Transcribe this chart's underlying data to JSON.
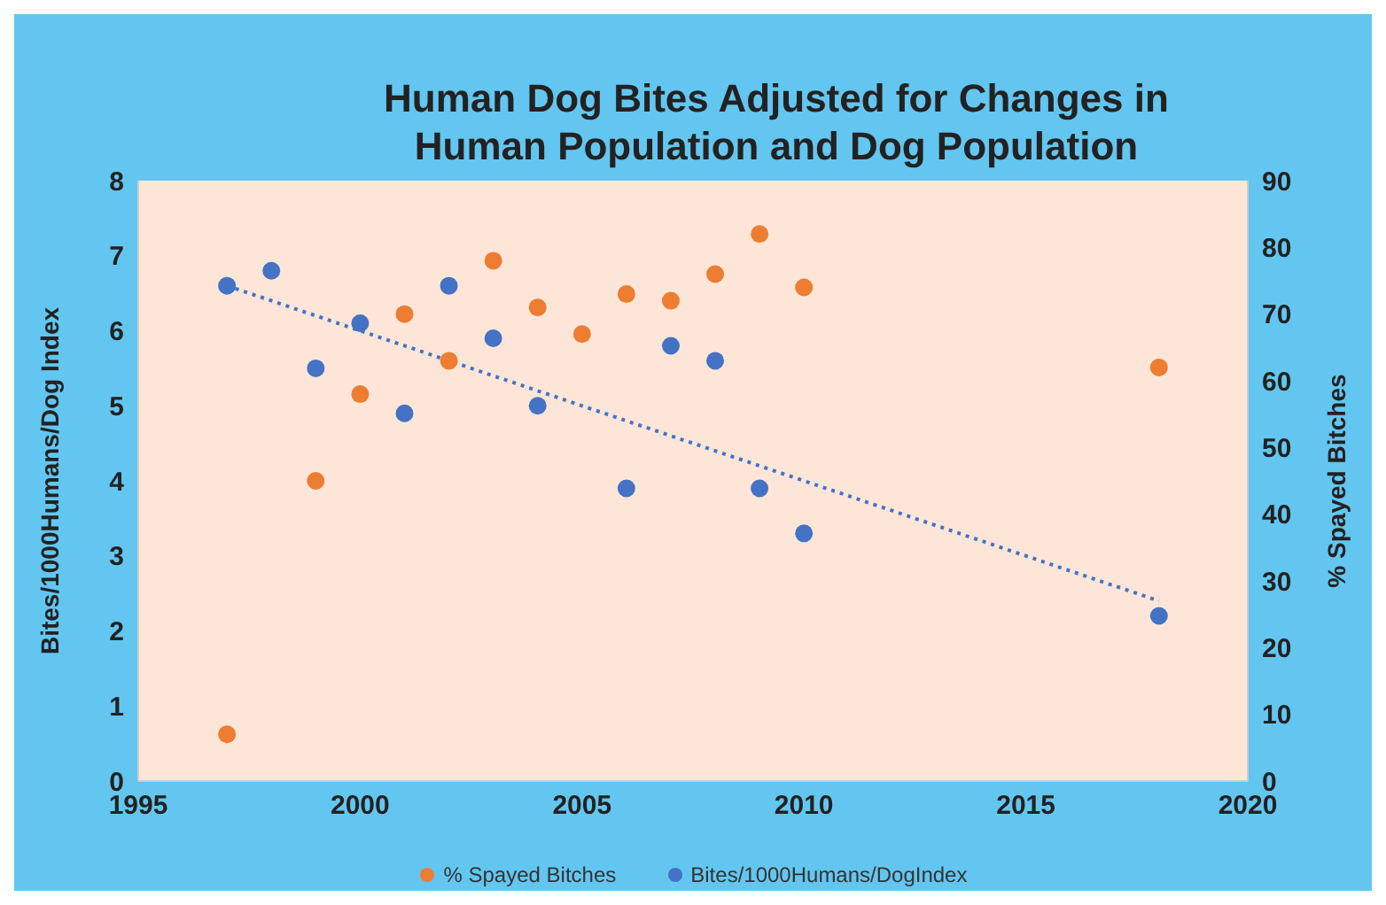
{
  "chart_data": {
    "type": "scatter",
    "title": "Human Dog Bites Adjusted for Changes in Human Population and Dog Population",
    "ylabel": "Bites/1000Humans/Dog Index",
    "y2label": "% Spayed Bitches",
    "xlim": [
      1995,
      2020
    ],
    "xticks": [
      1995,
      2000,
      2005,
      2010,
      2015,
      2020
    ],
    "ylim": [
      0,
      8
    ],
    "yticks": [
      0,
      1,
      2,
      3,
      4,
      5,
      6,
      7,
      8
    ],
    "y2lim": [
      0,
      90
    ],
    "y2ticks": [
      0,
      10,
      20,
      30,
      40,
      50,
      60,
      70,
      80,
      90
    ],
    "grid": false,
    "legend": "bottom",
    "marker": "circle",
    "series": [
      {
        "name": "% Spayed Bitches",
        "color": "#ed7d31",
        "axis": "y2",
        "x": [
          1997,
          1999,
          2000,
          2001,
          2002,
          2003,
          2004,
          2005,
          2006,
          2007,
          2008,
          2009,
          2010,
          2018
        ],
        "values": [
          7,
          45,
          58,
          70,
          63,
          78,
          71,
          67,
          73,
          72,
          76,
          82,
          74,
          62
        ]
      },
      {
        "name": "Bites/1000Humans/DogIndex",
        "color": "#4472c4",
        "x": [
          1997,
          1998,
          1999,
          2000,
          2001,
          2002,
          2003,
          2004,
          2006,
          2007,
          2008,
          2009,
          2010,
          2018
        ],
        "values": [
          6.6,
          6.8,
          5.5,
          6.1,
          4.9,
          6.6,
          5.9,
          5.0,
          3.9,
          5.8,
          5.6,
          3.9,
          3.3,
          2.2
        ]
      },
      {
        "type": "line",
        "color": "#4472c4",
        "line_style": "dotted",
        "marker": "none",
        "x": [
          1997,
          2018
        ],
        "values": [
          6.6,
          2.4
        ]
      }
    ]
  }
}
